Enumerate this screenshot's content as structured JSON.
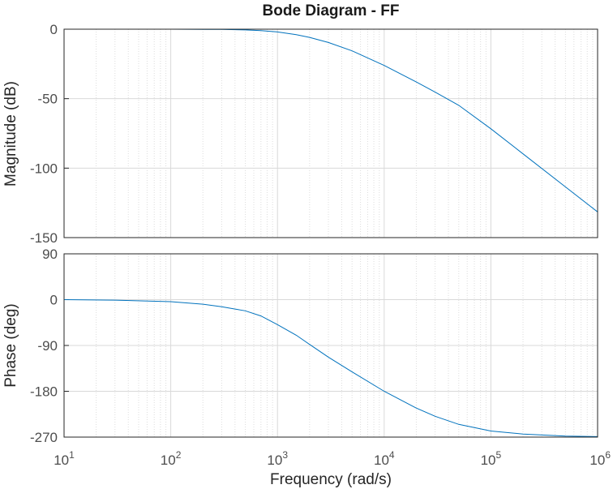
{
  "chart_data": [
    {
      "type": "line",
      "panel": "magnitude",
      "title": "Bode Diagram - FF",
      "ylabel": "Magnitude (dB)",
      "xscale": "log",
      "xlim": [
        10,
        1000000
      ],
      "ylim": [
        -150,
        0
      ],
      "yticks": [
        "0",
        "-50",
        "-100",
        "-150"
      ],
      "ytick_values": [
        0,
        -50,
        -100,
        -150
      ],
      "grid": true,
      "line_color": "#0072BD",
      "series": [
        {
          "x": [
            10,
            100,
            300,
            500,
            700,
            1000,
            1500,
            2000,
            3000,
            5000,
            10000,
            20000,
            30000,
            50000,
            100000,
            200000,
            500000,
            1000000
          ],
          "values": [
            0,
            -0.02,
            -0.2,
            -0.5,
            -1.0,
            -2.0,
            -3.9,
            -5.9,
            -9.6,
            -15.6,
            -26.1,
            -38.0,
            -45.3,
            -54.8,
            -71.7,
            -89.7,
            -113.5,
            -131.5
          ]
        }
      ]
    },
    {
      "type": "line",
      "panel": "phase",
      "ylabel": "Phase (deg)",
      "xlabel": "Frequency  (rad/s)",
      "xscale": "log",
      "xlim": [
        10,
        1000000
      ],
      "ylim": [
        -270,
        90
      ],
      "yticks": [
        "90",
        "0",
        "-90",
        "-180",
        "-270"
      ],
      "ytick_values": [
        90,
        0,
        -90,
        -180,
        -270
      ],
      "xticks": [
        {
          "base": "10",
          "exp": "1",
          "value": 10
        },
        {
          "base": "10",
          "exp": "2",
          "value": 100
        },
        {
          "base": "10",
          "exp": "3",
          "value": 1000
        },
        {
          "base": "10",
          "exp": "4",
          "value": 10000
        },
        {
          "base": "10",
          "exp": "5",
          "value": 100000
        },
        {
          "base": "10",
          "exp": "6",
          "value": 1000000
        }
      ],
      "grid": true,
      "line_color": "#0072BD",
      "series": [
        {
          "x": [
            10,
            30,
            100,
            200,
            300,
            500,
            700,
            1000,
            1500,
            2000,
            3000,
            5000,
            10000,
            20000,
            30000,
            50000,
            100000,
            200000,
            500000,
            1000000
          ],
          "values": [
            0,
            -1,
            -4,
            -9,
            -14,
            -22,
            -32,
            -49,
            -70,
            -88,
            -113,
            -142,
            -180,
            -213,
            -229,
            -245,
            -258,
            -264,
            -268,
            -269
          ]
        }
      ]
    }
  ]
}
